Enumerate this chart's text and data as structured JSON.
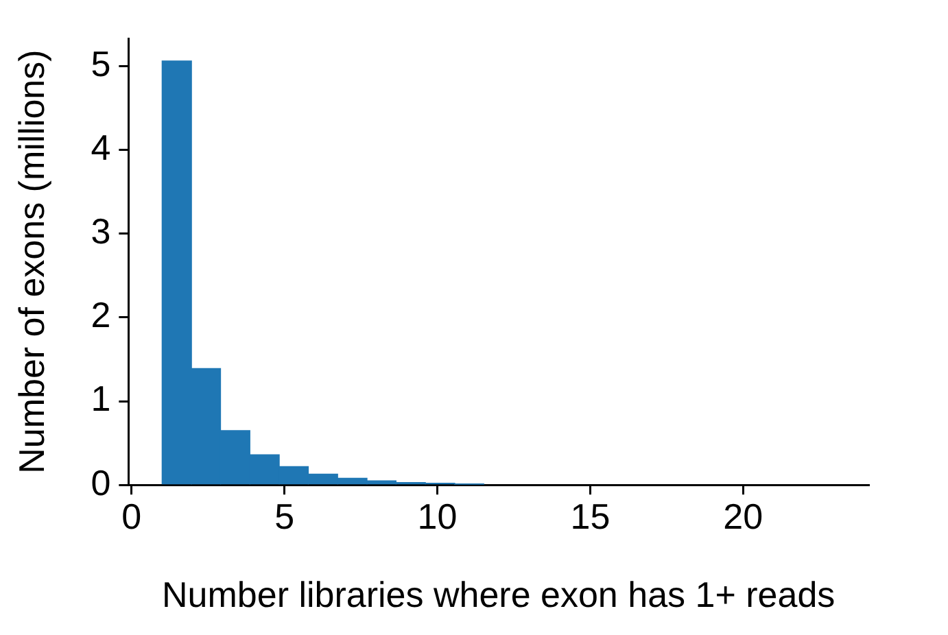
{
  "chart_data": {
    "type": "histogram",
    "xlabel": "Number libraries where exon has 1+ reads",
    "ylabel": "Number of exons (millions)",
    "bins": [
      1,
      1.96,
      2.91,
      3.87,
      4.83,
      5.78,
      6.74,
      7.7,
      8.65,
      9.61,
      10.57,
      11.52
    ],
    "values": [
      5.06,
      1.39,
      0.65,
      0.36,
      0.22,
      0.13,
      0.08,
      0.05,
      0.03,
      0.02,
      0.01
    ],
    "color": "#1f77b4",
    "xlim": [
      -0.1,
      24.1
    ],
    "xticks": [
      0,
      5,
      10,
      15,
      20
    ],
    "ylim": [
      0,
      5.33
    ],
    "yticks": [
      0,
      1,
      2,
      3,
      4,
      5
    ],
    "grid": false,
    "legend": false
  }
}
